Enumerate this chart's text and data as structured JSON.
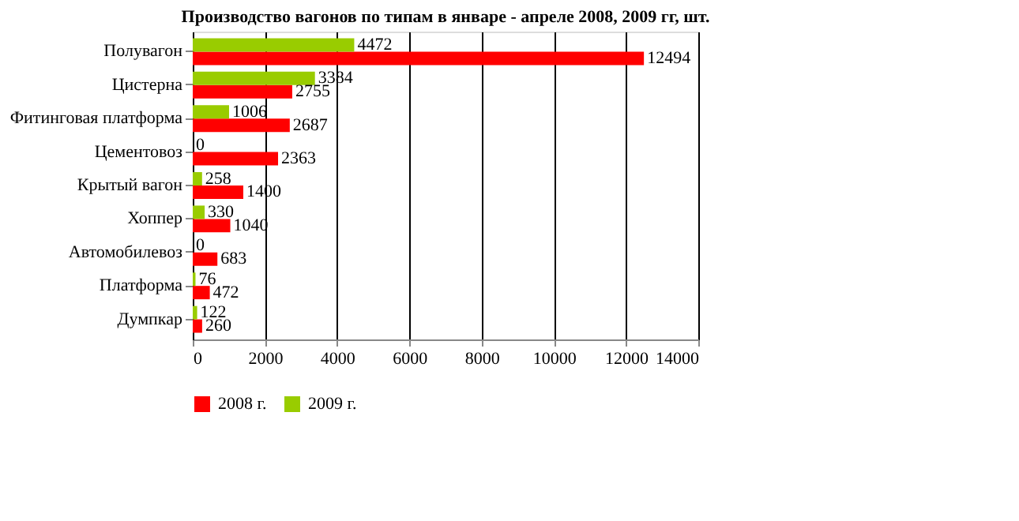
{
  "chart_data": {
    "type": "bar",
    "orientation": "horizontal",
    "title": "Производство вагонов по типам в январе - апреле 2008, 2009 гг, шт.",
    "categories": [
      "Полувагон",
      "Цистерна",
      "Фитинговая платформа",
      "Цементовоз",
      "Крытый вагон",
      "Хоппер",
      "Автомобилевоз",
      "Платформа",
      "Думпкар"
    ],
    "series": [
      {
        "name": "2008 г.",
        "color": "#ff0000",
        "values": [
          12494,
          2755,
          2687,
          2363,
          1400,
          1040,
          683,
          472,
          260
        ]
      },
      {
        "name": "2009 г.",
        "color": "#99cc00",
        "values": [
          4472,
          3384,
          1006,
          0,
          258,
          330,
          0,
          76,
          122
        ]
      }
    ],
    "xlim": [
      0,
      14000
    ],
    "xticks": [
      0,
      2000,
      4000,
      6000,
      8000,
      10000,
      12000,
      14000
    ],
    "grid": "x",
    "legend": "bottom",
    "data_labels": true
  }
}
